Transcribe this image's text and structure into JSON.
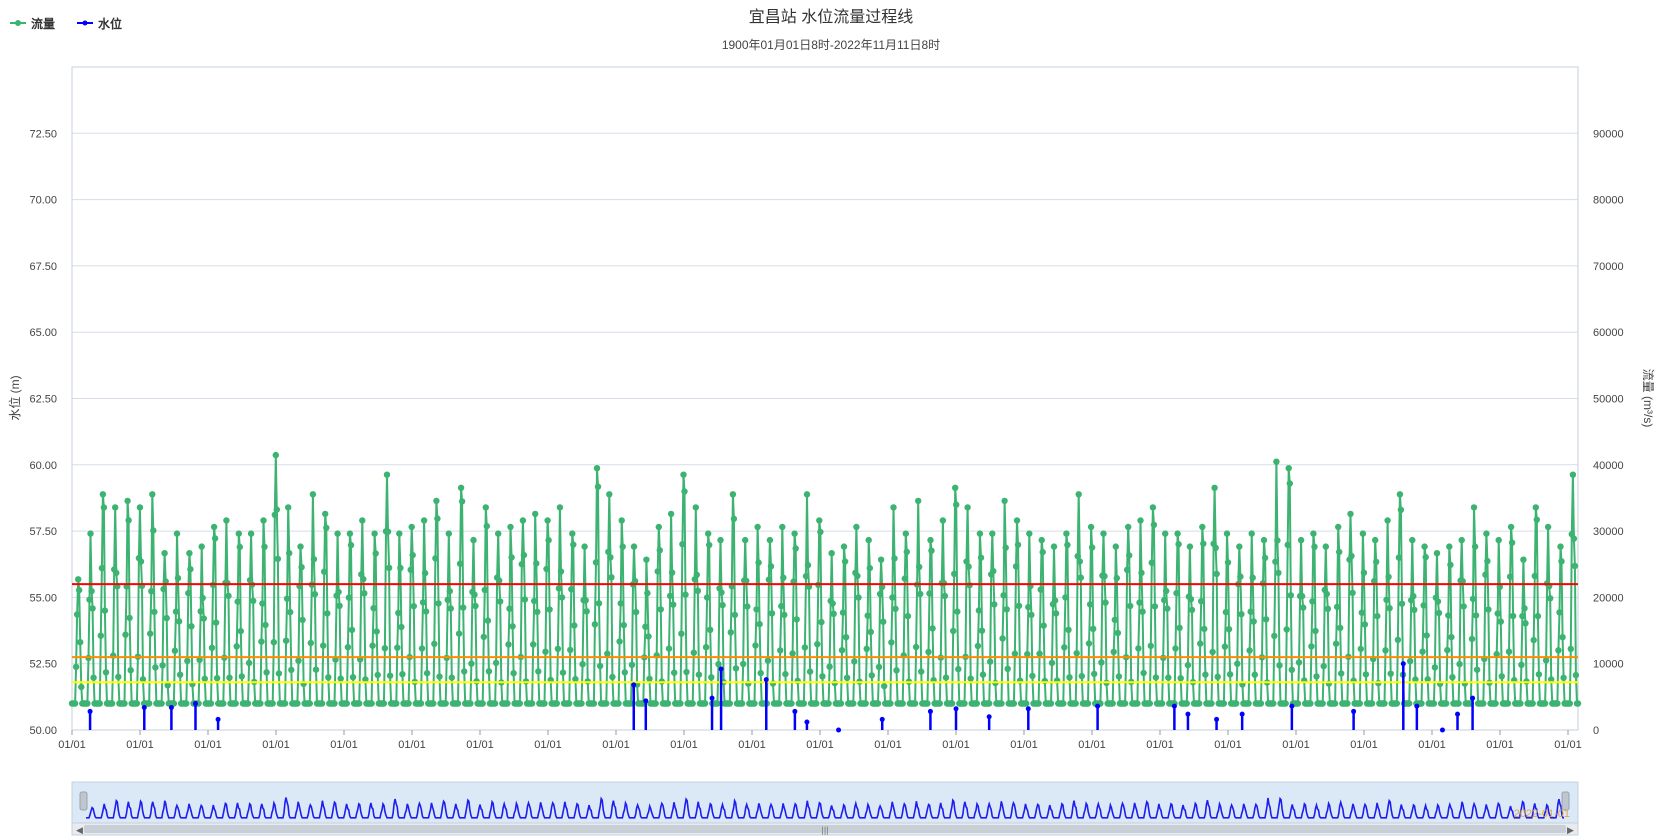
{
  "chart_data": {
    "type": "line",
    "title": "宜昌站 水位流量过程线",
    "subtitle": "1900年01月01日8时-2022年11月11日8时",
    "legend": {
      "placement": "top-left",
      "items": [
        {
          "name": "流量",
          "color": "#3cb371"
        },
        {
          "name": "水位",
          "color": "#0000ff"
        }
      ]
    },
    "y_left": {
      "label": "水位 (m)",
      "range": [
        50.0,
        75.0
      ],
      "ticks": [
        "50.00",
        "52.50",
        "55.00",
        "57.50",
        "60.00",
        "62.50",
        "65.00",
        "67.50",
        "70.00",
        "72.50"
      ],
      "tick_values": [
        50.0,
        52.5,
        55.0,
        57.5,
        60.0,
        62.5,
        65.0,
        67.5,
        70.0,
        72.5
      ]
    },
    "y_right": {
      "label": "流量 (m³/s)",
      "range": [
        0,
        100000
      ],
      "ticks": [
        "0",
        "10000",
        "20000",
        "30000",
        "40000",
        "50000",
        "60000",
        "70000",
        "80000",
        "90000"
      ],
      "tick_values": [
        0,
        10000,
        20000,
        30000,
        40000,
        50000,
        60000,
        70000,
        80000,
        90000
      ]
    },
    "x_axis": {
      "tick_label": "01/01",
      "tick_count": 23
    },
    "reference_lines": [
      {
        "axis": "left",
        "value": 55.5,
        "color": "#ff0000"
      },
      {
        "axis": "left",
        "value": 52.75,
        "color": "#ff8c00"
      },
      {
        "axis": "left",
        "value": 51.8,
        "color": "#ffff00"
      }
    ],
    "series": [
      {
        "name": "流量",
        "axis": "right",
        "color": "#3cb371",
        "annual_peaks": [
          23000,
          30000,
          36000,
          34000,
          35000,
          34000,
          36000,
          27000,
          30000,
          27000,
          28000,
          31000,
          32000,
          30000,
          30000,
          32000,
          42000,
          34000,
          28000,
          36000,
          33000,
          30000,
          30000,
          32000,
          30000,
          39000,
          30000,
          31000,
          32000,
          35000,
          30000,
          37000,
          29000,
          34000,
          30000,
          31000,
          32000,
          33000,
          32000,
          34000,
          30000,
          28000,
          40000,
          36000,
          32000,
          28000,
          26000,
          31000,
          33000,
          39000,
          34000,
          30000,
          29000,
          36000,
          29000,
          31000,
          29000,
          31000,
          30000,
          36000,
          32000,
          27000,
          28000,
          31000,
          29000,
          26000,
          34000,
          30000,
          35000,
          29000,
          32000,
          37000,
          34000,
          30000,
          30000,
          35000,
          32000,
          30000,
          29000,
          28000,
          30000,
          36000,
          31000,
          30000,
          28000,
          31000,
          32000,
          34000,
          30000,
          30000,
          28000,
          31000,
          37000,
          30000,
          28000,
          30000,
          29000,
          41000,
          40000,
          29000,
          30000,
          28000,
          31000,
          33000,
          30000,
          29000,
          32000,
          36000,
          29000,
          28000,
          27000,
          28000,
          29000,
          34000,
          30000,
          29000,
          31000,
          26000,
          34000,
          31000,
          28000,
          39000
        ],
        "base_flow": 4000
      },
      {
        "name": "水位",
        "axis": "left",
        "color": "#0000ff",
        "events": [
          {
            "pos": 0.012,
            "value": 50.7
          },
          {
            "pos": 0.048,
            "value": 50.85
          },
          {
            "pos": 0.066,
            "value": 50.85
          },
          {
            "pos": 0.082,
            "value": 51.0
          },
          {
            "pos": 0.097,
            "value": 50.4
          },
          {
            "pos": 0.373,
            "value": 51.7
          },
          {
            "pos": 0.381,
            "value": 51.1
          },
          {
            "pos": 0.425,
            "value": 51.2
          },
          {
            "pos": 0.431,
            "value": 52.3
          },
          {
            "pos": 0.461,
            "value": 51.9
          },
          {
            "pos": 0.48,
            "value": 50.7
          },
          {
            "pos": 0.488,
            "value": 50.3
          },
          {
            "pos": 0.509,
            "value": 50.0
          },
          {
            "pos": 0.538,
            "value": 50.4
          },
          {
            "pos": 0.57,
            "value": 50.7
          },
          {
            "pos": 0.587,
            "value": 50.8
          },
          {
            "pos": 0.609,
            "value": 50.5
          },
          {
            "pos": 0.635,
            "value": 50.8
          },
          {
            "pos": 0.681,
            "value": 50.9
          },
          {
            "pos": 0.732,
            "value": 50.9
          },
          {
            "pos": 0.741,
            "value": 50.6
          },
          {
            "pos": 0.76,
            "value": 50.4
          },
          {
            "pos": 0.777,
            "value": 50.6
          },
          {
            "pos": 0.81,
            "value": 50.9
          },
          {
            "pos": 0.851,
            "value": 50.7
          },
          {
            "pos": 0.884,
            "value": 52.5
          },
          {
            "pos": 0.893,
            "value": 50.9
          },
          {
            "pos": 0.91,
            "value": 50.0
          },
          {
            "pos": 0.92,
            "value": 50.6
          },
          {
            "pos": 0.93,
            "value": 51.2
          }
        ]
      }
    ],
    "data_zoom": {
      "visible": true,
      "start_label": "",
      "end_label": "2022-01-01"
    },
    "colors": {
      "grid": "#d6dde8",
      "axis_text": "#444444",
      "zoom_fill": "#dbe8f6",
      "zoom_line": "#1e1ef0",
      "zoom_handle": "#bfc6cf",
      "zoom_label": "#e8a33d"
    }
  }
}
